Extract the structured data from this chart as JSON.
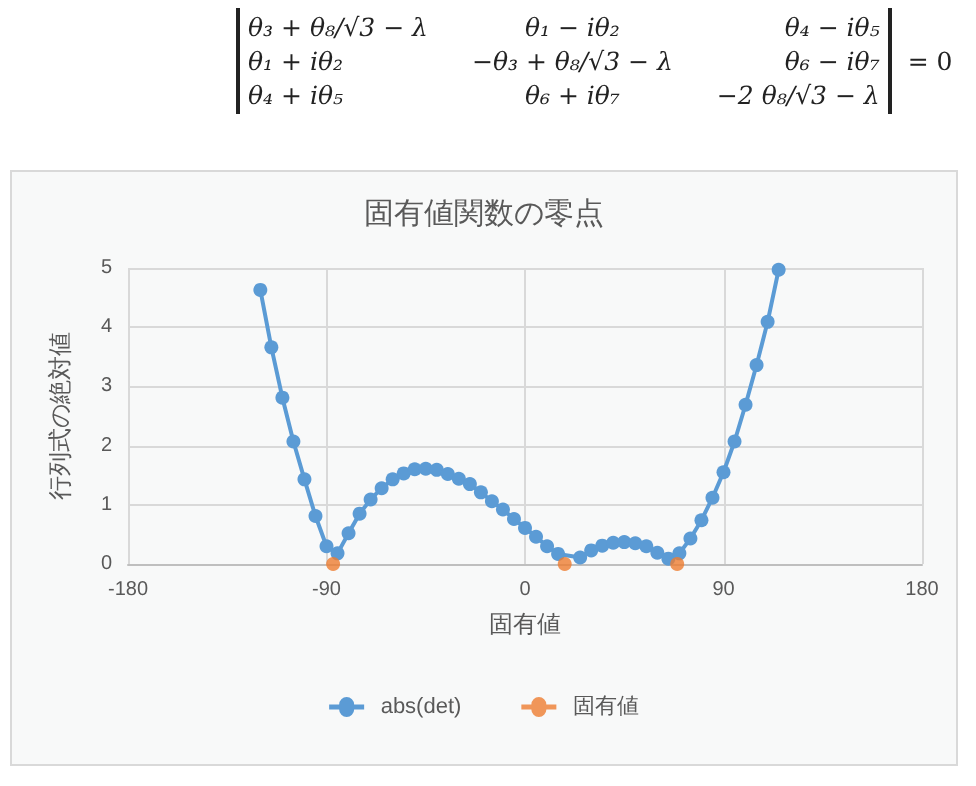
{
  "chart_data": {
    "type": "line",
    "title": "固有値関数の零点",
    "xlabel": "固有値",
    "ylabel": "行列式の絶対値",
    "annotations": [
      "θ₃ + θ₈/√3 − λ",
      "θ₁ − iθ₂",
      "θ₄ − iθ₅",
      "θ₁ + iθ₂",
      "−θ₃ + θ₈/√3 − λ",
      "θ₆ − iθ₇",
      "θ₄ + iθ₅",
      "θ₆ + iθ₇",
      "−2 θ₈/√3 − λ",
      "= 0"
    ],
    "xlim": [
      -180,
      180
    ],
    "xticks": [
      -180,
      -90,
      0,
      90,
      180
    ],
    "ylim": [
      0,
      5
    ],
    "yticks": [
      0,
      1,
      2,
      3,
      4,
      5
    ],
    "grid": true,
    "legend": "bottom",
    "marker": "circle",
    "line_style": "solid",
    "series": [
      {
        "name": "abs(det)",
        "color": "#5b9bd5",
        "x": [
          -120,
          -115,
          -110,
          -105,
          -100,
          -95,
          -90,
          -85,
          -80,
          -75,
          -70,
          -65,
          -60,
          -55,
          -50,
          -45,
          -40,
          -35,
          -30,
          -25,
          -20,
          -15,
          -10,
          -5,
          0,
          5,
          10,
          15,
          20,
          25,
          30,
          35,
          40,
          45,
          50,
          55,
          60,
          65,
          70,
          75,
          80,
          85,
          90,
          95,
          100,
          105,
          110,
          115
        ],
        "values": [
          4.63,
          3.66,
          2.81,
          2.07,
          1.43,
          0.81,
          0.3,
          0.18,
          0.52,
          0.85,
          1.09,
          1.28,
          1.43,
          1.53,
          1.6,
          1.61,
          1.59,
          1.52,
          1.44,
          1.35,
          1.21,
          1.06,
          0.92,
          0.76,
          0.61,
          0.46,
          0.3,
          0.17,
          null,
          0.11,
          0.23,
          0.31,
          0.36,
          0.37,
          0.35,
          0.3,
          0.19,
          0.09,
          0.18,
          0.43,
          0.74,
          1.12,
          1.55,
          2.07,
          2.69,
          3.36,
          4.09,
          4.97
        ]
      },
      {
        "name": "固有値",
        "color": "#ed7d31",
        "type": "scatter",
        "x": [
          -87,
          18,
          69
        ],
        "values": [
          0,
          0,
          0
        ]
      }
    ]
  }
}
